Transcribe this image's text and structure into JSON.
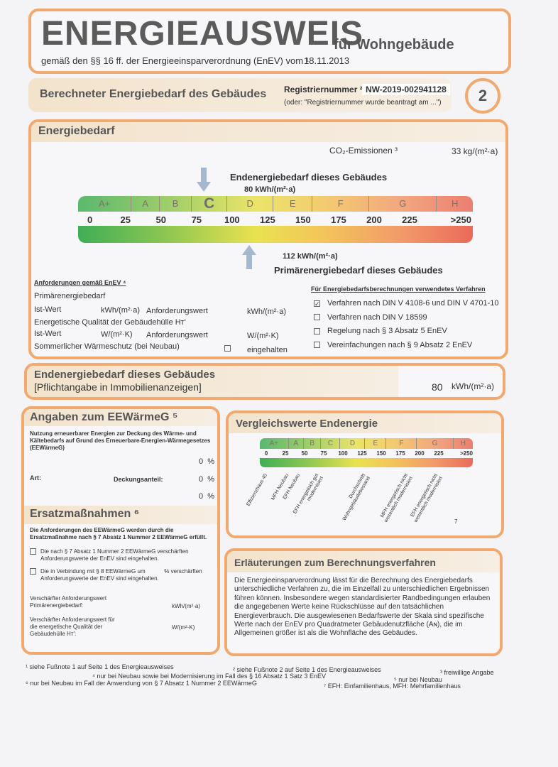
{
  "header": {
    "title": "ENERGIEAUSWEIS",
    "title_suffix": "für Wohngebäude",
    "subtitle": "gemäß den §§ 16 ff. der Energieeinsparverordnung (EnEV) vom ¹",
    "date": "18.11.2013"
  },
  "section_bar": {
    "title": "Berechneter Energiebedarf des Gebäudes",
    "reg_label": "Registriernummer ²",
    "reg_value": "NW-2019-002941128",
    "reg_note": "(oder: \"Registriernummer wurde beantragt am ...\")",
    "page_number": "2"
  },
  "energiebedarf": {
    "title": "Energiebedarf",
    "co2_label": "CO₂-Emissionen ³",
    "co2_value": "33 kg/(m²·a)",
    "end_title": "Endenergiebedarf dieses Gebäudes",
    "end_value": "80 kWh/(m²·a)",
    "end_numeric": 80,
    "primary_title": "Primärenergiebedarf dieses Gebäudes",
    "primary_value": "112 kWh/(m²·a)",
    "primary_numeric": 112,
    "classes": [
      "A+",
      "A",
      "B",
      "C",
      "D",
      "E",
      "F",
      "G",
      "H"
    ],
    "active_class": "C",
    "ticks": [
      "0",
      "25",
      "50",
      "75",
      "100",
      "125",
      "150",
      "175",
      "200",
      "225",
      ">250"
    ]
  },
  "requirements": {
    "title": "Anforderungen gemäß EnEV ⁴",
    "primary": "Primärenergiebedarf",
    "ist": "Ist-Wert",
    "unit1": "kWh/(m²·a)",
    "anf": "Anforderungswert",
    "unit2": "kWh/(m²·a)",
    "envelope": "Energetische Qualität der Gebäudehülle Hᴛ'",
    "unit3": "W/(m²·K)",
    "unit4": "W/(m²·K)",
    "summer": "Sommerlicher Wärmeschutz (bei Neubau)",
    "summer_status": "eingehalten"
  },
  "methods": {
    "title": "Für Energiebedarfsberechnungen verwendetes Verfahren",
    "items": [
      {
        "label": "Verfahren nach DIN V 4108-6 und DIN V 4701-10",
        "checked": true
      },
      {
        "label": "Verfahren nach DIN V 18599",
        "checked": false
      },
      {
        "label": "Regelung nach § 3 Absatz 5 EnEV",
        "checked": false
      },
      {
        "label": "Vereinfachungen nach § 9 Absatz 2 EnEV",
        "checked": false
      }
    ]
  },
  "endenergie_box": {
    "title": "Endenergiebedarf dieses Gebäudes",
    "subtitle": "[Pflichtangabe in Immobilienanzeigen]",
    "value": "80",
    "unit": "kWh/(m²·a)"
  },
  "eewaermeg": {
    "title": "Angaben zum EEWärmeG ⁵",
    "desc": "Nutzung erneuerbarer Energien zur Deckung des Wärme- und Kältebedarfs auf Grund des Erneuerbare-Energien-Wärmegesetzes (EEWärmeG)",
    "art": "Art:",
    "deckung": "Deckungsanteil:",
    "values": [
      "0  %",
      "0  %",
      "0  %"
    ]
  },
  "ersatz": {
    "title": "Ersatzmaßnahmen ⁶",
    "desc": "Die Anforderungen des EEWärmeG werden durch die Ersatzmaßnahme nach § 7 Absatz 1 Nummer 2 EEWärmeG erfüllt.",
    "opt1": "Die nach § 7 Absatz 1 Nummer 2 EEWärmeG verschärften Anforderungswerte der EnEV sind eingehalten.",
    "opt2": "Die in Verbindung mit § 8 EEWärmeG um            % verschärften Anforderungswerte der EnEV sind eingehalten.",
    "req1": "Verschärfter Anforderungswert Primärenergiebedarf:",
    "unit1": "kWh/(m²·a)",
    "req2": "Verschärfter Anforderungswert für die energetische Qualität der Gebäudehülle Hᴛ':",
    "unit2": "W/(m²·K)"
  },
  "vergleich": {
    "title": "Vergleichswerte Endenergie",
    "refs": [
      "Effizienzhaus 40",
      "MFH Neubau",
      "EFH Neubau",
      "EFH energetisch gut modernisiert",
      "Durchschnitt Wohngebäudebestand",
      "MFH energetisch nicht wesentlich modernisiert",
      "EFH energetisch nicht wesentlich modernisiert"
    ],
    "footnote": "7"
  },
  "erlaeuterung": {
    "title": "Erläuterungen zum Berechnungsverfahren",
    "text": "Die Energieeinsparverordnung lässt für die Berechnung des Energiebedarfs unterschiedliche Verfahren zu, die im Einzelfall zu unterschiedlichen Ergebnissen führen können. Insbesondere wegen standardisierter Randbedingungen erlauben die angegebenen Werte keine Rückschlüsse auf den tatsächlichen Energieverbrauch. Die ausgewiesenen Bedarfswerte der Skala sind spezifische Werte nach der EnEV pro Quadratmeter Gebäudenutzfläche (Aɴ), die im Allgemeinen größer ist als die Wohnfläche des Gebäudes."
  },
  "footnotes": [
    "¹ siehe Fußnote 1 auf Seite 1 des Energieausweises",
    "² siehe Fußnote 2 auf Seite 1 des Energieausweises",
    "³ freiwillige Angabe",
    "⁴ nur bei Neubau sowie bei Modernisierung im Fall des § 16 Absatz 1 Satz 3 EnEV",
    "⁵ nur bei Neubau",
    "⁶ nur bei Neubau im Fall der Anwendung von § 7 Absatz 1 Nummer 2 EEWärmeG",
    "⁷ EFH: Einfamilienhaus, MFH: Mehrfamilienhaus"
  ]
}
